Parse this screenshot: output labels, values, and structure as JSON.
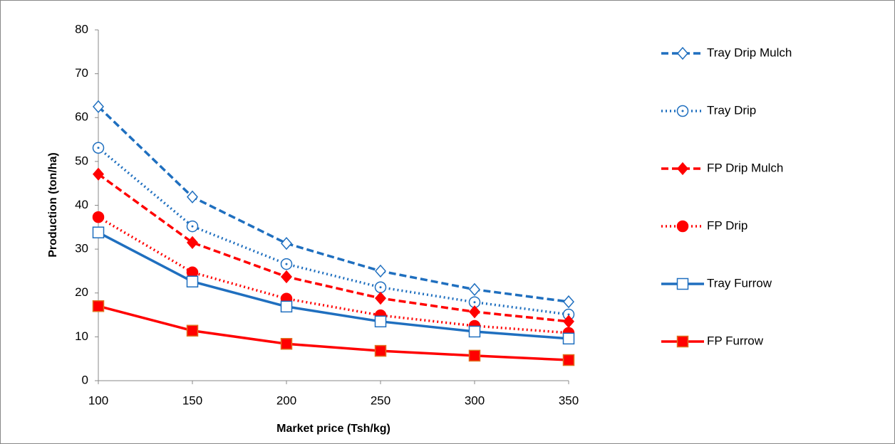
{
  "chart_data": {
    "type": "line",
    "x_label": "Market price (Tsh/kg)",
    "y_label": "Production (ton/ha)",
    "x": [
      100,
      150,
      200,
      250,
      300,
      350
    ],
    "xlim": [
      100,
      350
    ],
    "xticks": [
      100,
      150,
      200,
      250,
      300,
      350
    ],
    "ylim": [
      0,
      80
    ],
    "yticks": [
      0,
      10,
      20,
      30,
      40,
      50,
      60,
      70,
      80
    ],
    "grid": false,
    "legend": "right",
    "series": [
      {
        "name": "Tray Drip Mulch",
        "color": "#1f6fbf",
        "dash": "dashed",
        "marker": "open-diamond",
        "values": [
          62.5,
          41.9,
          31.3,
          25.0,
          20.8,
          18.0
        ]
      },
      {
        "name": "Tray Drip",
        "color": "#1f6fbf",
        "dash": "dotted",
        "marker": "dotted-circle",
        "values": [
          53.1,
          35.2,
          26.6,
          21.3,
          17.9,
          15.1
        ]
      },
      {
        "name": "FP Drip Mulch",
        "color": "#ff0000",
        "dash": "dashed",
        "marker": "diamond",
        "values": [
          47.1,
          31.5,
          23.7,
          18.8,
          15.7,
          13.5
        ]
      },
      {
        "name": "FP Drip",
        "color": "#ff0000",
        "dash": "dotted",
        "marker": "circle",
        "values": [
          37.3,
          24.7,
          18.7,
          14.9,
          12.5,
          10.9
        ]
      },
      {
        "name": "Tray Furrow",
        "color": "#1f6fbf",
        "dash": "solid",
        "marker": "open-square",
        "values": [
          33.8,
          22.6,
          16.9,
          13.5,
          11.2,
          9.6
        ]
      },
      {
        "name": "FP Furrow",
        "color": "#ff0000",
        "dash": "solid",
        "marker": "square",
        "values": [
          17.0,
          11.4,
          8.4,
          6.8,
          5.7,
          4.7
        ]
      }
    ]
  }
}
